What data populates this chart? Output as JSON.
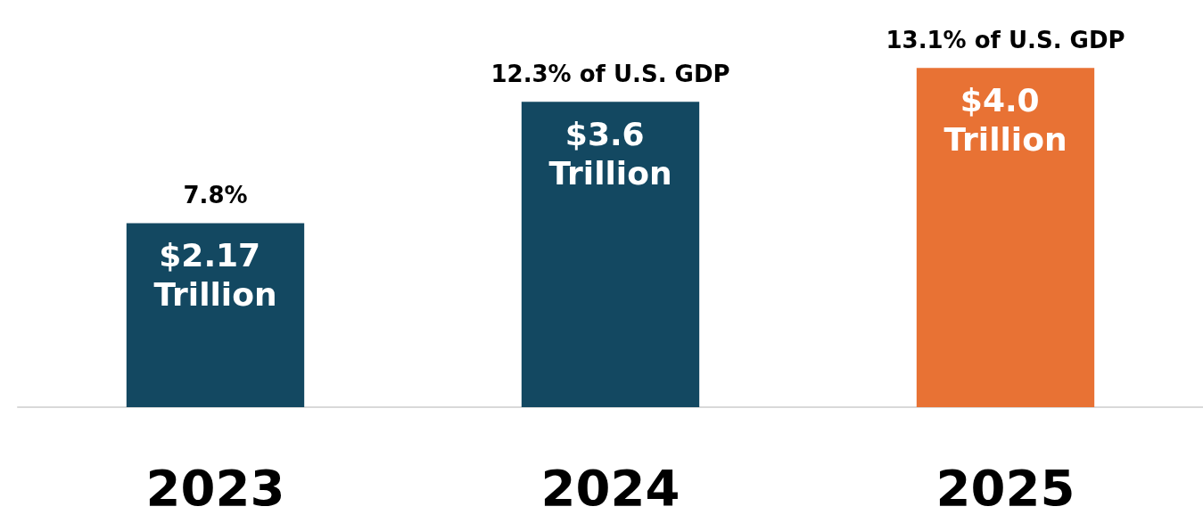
{
  "chart_data": {
    "type": "bar",
    "categories": [
      "2023",
      "2024",
      "2025"
    ],
    "values": [
      2.17,
      3.6,
      4.0
    ],
    "colors": [
      "#134861",
      "#134861",
      "#e87234"
    ],
    "value_labels": [
      "$2.17 Trillion",
      "$3.6 Trillion",
      "$4.0 Trillion"
    ],
    "annotations": [
      {
        "text": "7.8%",
        "x": "2023",
        "y": 2.17
      },
      {
        "text": "12.3% of U.S. GDP",
        "x": "2024",
        "y": 3.6
      },
      {
        "text": "13.1% of U.S. GDP",
        "x": "2025",
        "y": 4.0
      }
    ]
  }
}
